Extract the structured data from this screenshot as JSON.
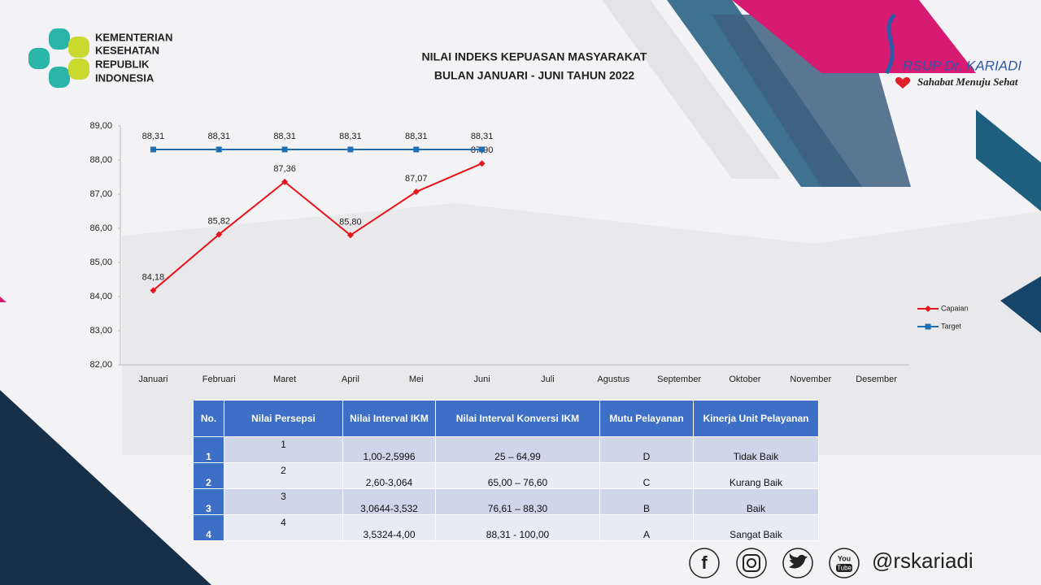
{
  "header": {
    "kemenkes": [
      "KEMENTERIAN",
      "KESEHATAN",
      "REPUBLIK",
      "INDONESIA"
    ],
    "rsup": "RSUP Dr. KARIADI",
    "tagline": "Sahabat Menuju Sehat"
  },
  "chart_data": {
    "type": "line",
    "title": "NILAI INDEKS KEPUASAN MASYARAKAT",
    "subtitle": "BULAN JANUARI - JUNI TAHUN 2022",
    "categories": [
      "Januari",
      "Februari",
      "Maret",
      "April",
      "Mei",
      "Juni",
      "Juli",
      "Agustus",
      "September",
      "Oktober",
      "November",
      "Desember"
    ],
    "series": [
      {
        "name": "Capaian",
        "color": "#e8141c",
        "marker": "diamond",
        "values": [
          84.18,
          85.82,
          87.36,
          85.8,
          87.07,
          87.9,
          null,
          null,
          null,
          null,
          null,
          null
        ],
        "value_labels": [
          "84,18",
          "85,82",
          "87,36",
          "85,80",
          "87,07",
          "87,90",
          null,
          null,
          null,
          null,
          null,
          null
        ]
      },
      {
        "name": "Target",
        "color": "#1f6fb5",
        "marker": "square",
        "values": [
          88.31,
          88.31,
          88.31,
          88.31,
          88.31,
          88.31,
          null,
          null,
          null,
          null,
          null,
          null
        ],
        "value_labels": [
          "88,31",
          "88,31",
          "88,31",
          "88,31",
          "88,31",
          "88,31",
          null,
          null,
          null,
          null,
          null,
          null
        ]
      }
    ],
    "ylim": [
      82,
      89
    ],
    "yticks": [
      {
        "value": 82,
        "label": "82,00"
      },
      {
        "value": 83,
        "label": "83,00"
      },
      {
        "value": 84,
        "label": "84,00"
      },
      {
        "value": 85,
        "label": "85,00"
      },
      {
        "value": 86,
        "label": "86,00"
      },
      {
        "value": 87,
        "label": "87,00"
      },
      {
        "value": 88,
        "label": "88,00"
      },
      {
        "value": 89,
        "label": "89,00"
      }
    ],
    "grid": false,
    "legend": "right"
  },
  "table": {
    "headers": [
      "No.",
      "Nilai Persepsi",
      "Nilai Interval IKM",
      "Nilai Interval Konversi IKM",
      "Mutu Pelayanan",
      "Kinerja Unit Pelayanan"
    ],
    "rows": [
      [
        "1",
        "1",
        "1,00-2,5996",
        "25 – 64,99",
        "D",
        "Tidak Baik"
      ],
      [
        "2",
        "2",
        "2,60-3,064",
        "65,00 – 76,60",
        "C",
        "Kurang Baik"
      ],
      [
        "3",
        "3",
        "3,0644-3,532",
        "76,61 – 88,30",
        "B",
        "Baik"
      ],
      [
        "4",
        "4",
        "3,5324-4,00",
        "88,31 - 100,00",
        "A",
        "Sangat Baik"
      ]
    ]
  },
  "footer": {
    "facebook": "f",
    "youtube": [
      "You",
      "Tube"
    ],
    "handle": "@rskariadi"
  }
}
